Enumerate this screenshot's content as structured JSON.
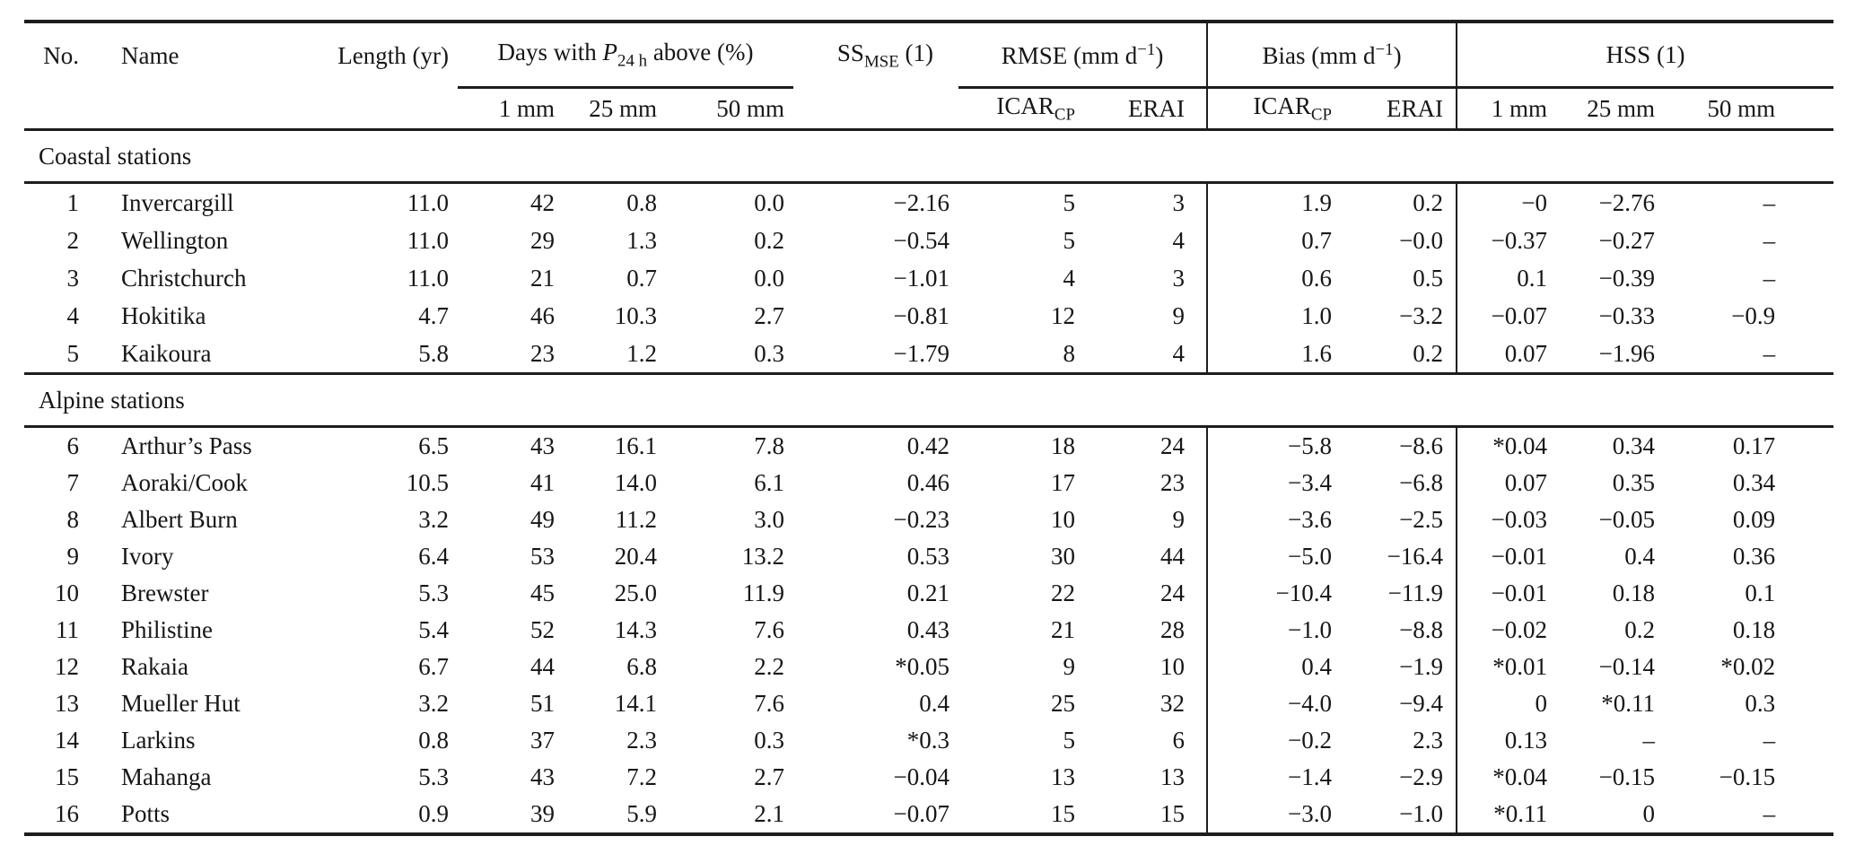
{
  "table": {
    "header": {
      "no": "No.",
      "name": "Name",
      "length": "Length (yr)",
      "days": {
        "pre": "Days with ",
        "var": "P",
        "sub": "24 h",
        "post": " above (%)"
      },
      "ss": {
        "base": "SS",
        "sub": "MSE",
        "post": " (1)"
      },
      "rmse": {
        "pre": "RMSE (mm d",
        "sup": "−1",
        "post": ")"
      },
      "bias": {
        "pre": "Bias (mm d",
        "sup": "−1",
        "post": ")"
      },
      "hss": "HSS (1)",
      "icar": {
        "base": "ICAR",
        "sub": "CP"
      },
      "erai": "ERAI",
      "mm1": "1 mm",
      "mm25": "25 mm",
      "mm50": "50 mm"
    },
    "sections": [
      {
        "label": "Coastal stations",
        "rows": [
          [
            "1",
            "Invercargill",
            "11.0",
            "42",
            "0.8",
            "0.0",
            "−2.16",
            "5",
            "3",
            "1.9",
            "0.2",
            "−0",
            "−2.76",
            "–"
          ],
          [
            "2",
            "Wellington",
            "11.0",
            "29",
            "1.3",
            "0.2",
            "−0.54",
            "5",
            "4",
            "0.7",
            "−0.0",
            "−0.37",
            "−0.27",
            "–"
          ],
          [
            "3",
            "Christchurch",
            "11.0",
            "21",
            "0.7",
            "0.0",
            "−1.01",
            "4",
            "3",
            "0.6",
            "0.5",
            "0.1",
            "−0.39",
            "–"
          ],
          [
            "4",
            "Hokitika",
            "4.7",
            "46",
            "10.3",
            "2.7",
            "−0.81",
            "12",
            "9",
            "1.0",
            "−3.2",
            "−0.07",
            "−0.33",
            "−0.9"
          ],
          [
            "5",
            "Kaikoura",
            "5.8",
            "23",
            "1.2",
            "0.3",
            "−1.79",
            "8",
            "4",
            "1.6",
            "0.2",
            "0.07",
            "−1.96",
            "–"
          ]
        ]
      },
      {
        "label": "Alpine stations",
        "rows": [
          [
            "6",
            "Arthur’s Pass",
            "6.5",
            "43",
            "16.1",
            "7.8",
            "0.42",
            "18",
            "24",
            "−5.8",
            "−8.6",
            "*0.04",
            "0.34",
            "0.17"
          ],
          [
            "7",
            "Aoraki/Cook",
            "10.5",
            "41",
            "14.0",
            "6.1",
            "0.46",
            "17",
            "23",
            "−3.4",
            "−6.8",
            "0.07",
            "0.35",
            "0.34"
          ],
          [
            "8",
            "Albert Burn",
            "3.2",
            "49",
            "11.2",
            "3.0",
            "−0.23",
            "10",
            "9",
            "−3.6",
            "−2.5",
            "−0.03",
            "−0.05",
            "0.09"
          ],
          [
            "9",
            "Ivory",
            "6.4",
            "53",
            "20.4",
            "13.2",
            "0.53",
            "30",
            "44",
            "−5.0",
            "−16.4",
            "−0.01",
            "0.4",
            "0.36"
          ],
          [
            "10",
            "Brewster",
            "5.3",
            "45",
            "25.0",
            "11.9",
            "0.21",
            "22",
            "24",
            "−10.4",
            "−11.9",
            "−0.01",
            "0.18",
            "0.1"
          ],
          [
            "11",
            "Philistine",
            "5.4",
            "52",
            "14.3",
            "7.6",
            "0.43",
            "21",
            "28",
            "−1.0",
            "−8.8",
            "−0.02",
            "0.2",
            "0.18"
          ],
          [
            "12",
            "Rakaia",
            "6.7",
            "44",
            "6.8",
            "2.2",
            "*0.05",
            "9",
            "10",
            "0.4",
            "−1.9",
            "*0.01",
            "−0.14",
            "*0.02"
          ],
          [
            "13",
            "Mueller Hut",
            "3.2",
            "51",
            "14.1",
            "7.6",
            "0.4",
            "25",
            "32",
            "−4.0",
            "−9.4",
            "0",
            "*0.11",
            "0.3"
          ],
          [
            "14",
            "Larkins",
            "0.8",
            "37",
            "2.3",
            "0.3",
            "*0.3",
            "5",
            "6",
            "−0.2",
            "2.3",
            "0.13",
            "–",
            "–"
          ],
          [
            "15",
            "Mahanga",
            "5.3",
            "43",
            "7.2",
            "2.7",
            "−0.04",
            "13",
            "13",
            "−1.4",
            "−2.9",
            "*0.04",
            "−0.15",
            "−0.15"
          ],
          [
            "16",
            "Potts",
            "0.9",
            "39",
            "5.9",
            "2.1",
            "−0.07",
            "15",
            "15",
            "−3.0",
            "−1.0",
            "*0.11",
            "0",
            "–"
          ]
        ]
      }
    ]
  }
}
